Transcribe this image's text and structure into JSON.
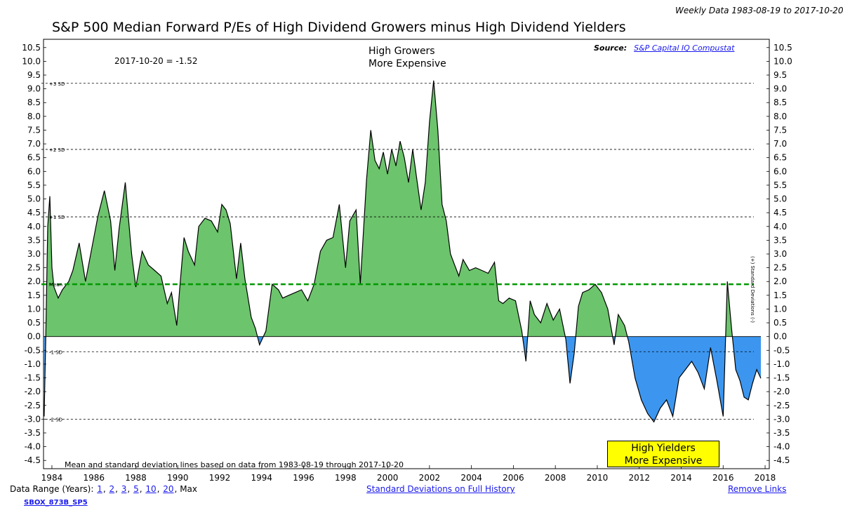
{
  "header": {
    "date_range": "Weekly Data 1983-08-19 to 2017-10-20",
    "title": "S&P 500 Median Forward P/Es of High Dividend Growers minus High Dividend Yielders"
  },
  "annotations": {
    "latest_value": "2017-10-20 = -1.52",
    "growers_line1": "High Growers",
    "growers_line2": "More Expensive",
    "yielders_line1": "High Yielders",
    "yielders_line2": "More Expensive",
    "source_label": "Source:",
    "source_link": "S&P Capital IQ Compustat",
    "footnote": "Mean and standard deviation lines based on data from 1983-08-19 through 2017-10-20",
    "right_axis_label": "(+) Standard Deviations (-)"
  },
  "footer": {
    "data_range_label": "Data Range (Years):",
    "range_options": [
      "1",
      "2",
      "3",
      "5",
      "10",
      "20"
    ],
    "range_max": "Max",
    "sd_link": "Standard Deviations on Full History",
    "remove_links": "Remove Links",
    "code": "SBOX_873B_SP5"
  },
  "colors": {
    "positive_fill": "#6cc46c",
    "negative_fill": "#3c96f0",
    "mean_line": "#009900",
    "line": "#000000",
    "highlight_box": "#ffff00"
  },
  "chart_data": {
    "type": "area",
    "title": "S&P 500 Median Forward P/Es of High Dividend Growers minus High Dividend Yielders",
    "xlim": [
      1983.6,
      2018.2
    ],
    "ylim": [
      -4.8,
      10.8
    ],
    "x_ticks": [
      "1984",
      "1986",
      "1988",
      "1990",
      "1992",
      "1994",
      "1996",
      "1998",
      "2000",
      "2002",
      "2004",
      "2006",
      "2008",
      "2010",
      "2012",
      "2014",
      "2016",
      "2018"
    ],
    "y_ticks": [
      "10.5",
      "10.0",
      "9.5",
      "9.0",
      "8.5",
      "8.0",
      "7.5",
      "7.0",
      "6.5",
      "6.0",
      "5.5",
      "5.0",
      "4.5",
      "4.0",
      "3.5",
      "3.0",
      "2.5",
      "2.0",
      "1.5",
      "1.0",
      "0.5",
      "0.0",
      "-0.5",
      "-1.0",
      "-1.5",
      "-2.0",
      "-2.5",
      "-3.0",
      "-3.5",
      "-4.0",
      "-4.5"
    ],
    "reference_lines": [
      {
        "label": "+3 SD",
        "value": 9.2
      },
      {
        "label": "+2 SD",
        "value": 6.8
      },
      {
        "label": "+1 SD",
        "value": 4.35
      },
      {
        "label": "Mean",
        "value": 1.9
      },
      {
        "label": "-1 SD",
        "value": -0.55
      },
      {
        "label": "-2 SD",
        "value": -3.0
      }
    ],
    "series": [
      {
        "name": "Growers minus Yielders median forward P/E",
        "x": [
          1983.63,
          1983.7,
          1983.8,
          1983.9,
          1984.0,
          1984.1,
          1984.3,
          1984.5,
          1984.8,
          1985.0,
          1985.3,
          1985.6,
          1985.9,
          1986.2,
          1986.5,
          1986.8,
          1987.0,
          1987.2,
          1987.5,
          1987.8,
          1988.0,
          1988.3,
          1988.6,
          1988.9,
          1989.2,
          1989.5,
          1989.7,
          1989.95,
          1990.1,
          1990.3,
          1990.5,
          1990.8,
          1991.0,
          1991.3,
          1991.6,
          1991.9,
          1992.1,
          1992.3,
          1992.5,
          1992.8,
          1993.0,
          1993.2,
          1993.5,
          1993.7,
          1993.9,
          1994.2,
          1994.5,
          1994.8,
          1995.0,
          1995.3,
          1995.6,
          1995.9,
          1996.2,
          1996.5,
          1996.8,
          1997.1,
          1997.4,
          1997.7,
          1998.0,
          1998.2,
          1998.5,
          1998.7,
          1999.0,
          1999.2,
          1999.4,
          1999.6,
          1999.8,
          2000.0,
          2000.2,
          2000.4,
          2000.6,
          2000.8,
          2001.0,
          2001.2,
          2001.4,
          2001.6,
          2001.8,
          2002.0,
          2002.2,
          2002.4,
          2002.6,
          2002.8,
          2003.0,
          2003.2,
          2003.4,
          2003.6,
          2003.9,
          2004.2,
          2004.5,
          2004.8,
          2005.1,
          2005.3,
          2005.5,
          2005.8,
          2006.1,
          2006.4,
          2006.6,
          2006.8,
          2007.0,
          2007.3,
          2007.6,
          2007.9,
          2008.2,
          2008.5,
          2008.7,
          2008.9,
          2009.1,
          2009.3,
          2009.6,
          2009.9,
          2010.2,
          2010.5,
          2010.8,
          2011.0,
          2011.3,
          2011.5,
          2011.8,
          2012.1,
          2012.4,
          2012.7,
          2013.0,
          2013.3,
          2013.6,
          2013.9,
          2014.2,
          2014.5,
          2014.8,
          2015.1,
          2015.4,
          2015.7,
          2016.0,
          2016.2,
          2016.4,
          2016.6,
          2016.8,
          2017.0,
          2017.2,
          2017.4,
          2017.6,
          2017.8
        ],
        "values": [
          -2.9,
          -0.3,
          4.0,
          5.1,
          2.5,
          1.8,
          1.4,
          1.7,
          2.0,
          2.4,
          3.4,
          2.0,
          3.2,
          4.4,
          5.3,
          4.2,
          2.4,
          3.9,
          5.6,
          3.0,
          1.8,
          3.1,
          2.6,
          2.4,
          2.2,
          1.2,
          1.6,
          0.4,
          1.8,
          3.6,
          3.1,
          2.6,
          4.0,
          4.3,
          4.2,
          3.8,
          4.8,
          4.6,
          4.1,
          2.1,
          3.4,
          2.1,
          0.7,
          0.3,
          -0.3,
          0.2,
          1.9,
          1.7,
          1.4,
          1.5,
          1.6,
          1.7,
          1.3,
          1.9,
          3.1,
          3.5,
          3.6,
          4.8,
          2.5,
          4.2,
          4.6,
          1.9,
          5.7,
          7.5,
          6.4,
          6.1,
          6.7,
          5.9,
          6.8,
          6.2,
          7.1,
          6.5,
          5.6,
          6.8,
          5.7,
          4.6,
          5.6,
          7.8,
          9.3,
          7.5,
          4.8,
          4.2,
          3.0,
          2.6,
          2.2,
          2.8,
          2.4,
          2.5,
          2.4,
          2.3,
          2.7,
          1.3,
          1.2,
          1.4,
          1.3,
          0.2,
          -0.9,
          1.3,
          0.8,
          0.5,
          1.2,
          0.6,
          1.0,
          -0.1,
          -1.7,
          -0.6,
          1.1,
          1.6,
          1.7,
          1.9,
          1.6,
          1.0,
          -0.3,
          0.8,
          0.4,
          -0.2,
          -1.5,
          -2.3,
          -2.8,
          -3.1,
          -2.6,
          -2.3,
          -2.9,
          -1.5,
          -1.2,
          -0.9,
          -1.3,
          -1.9,
          -0.4,
          -1.6,
          -2.9,
          2.0,
          0.3,
          -1.2,
          -1.6,
          -2.2,
          -2.3,
          -1.7,
          -1.2,
          -1.52
        ]
      }
    ],
    "legend": "none",
    "grid": false
  }
}
